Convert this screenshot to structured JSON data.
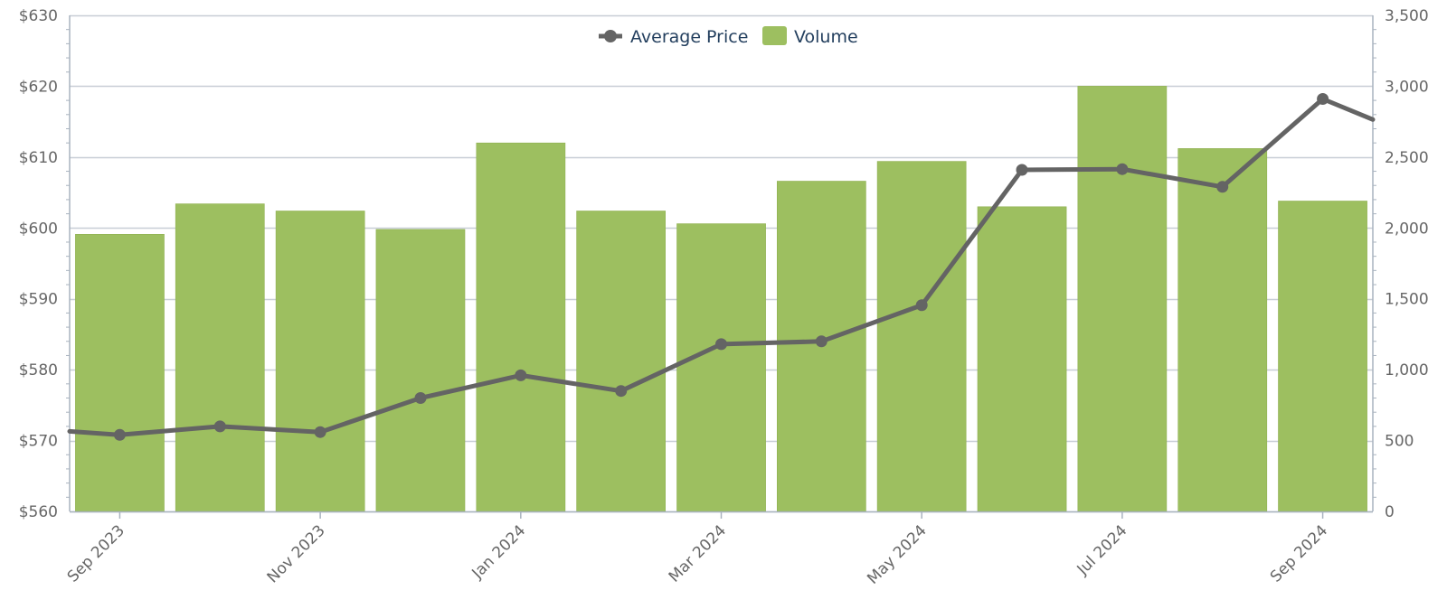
{
  "chart_data": {
    "type": "bar",
    "series": [
      {
        "name": "Volume",
        "type": "bar",
        "axis": "right",
        "color": "#9dbf60",
        "values": [
          1955,
          2170,
          2120,
          1990,
          2600,
          2120,
          2030,
          2330,
          2470,
          2150,
          3000,
          2560,
          2190
        ]
      },
      {
        "name": "Average Price",
        "type": "line",
        "axis": "left",
        "color": "#646464",
        "values": [
          570.8,
          572.0,
          571.2,
          576.0,
          579.2,
          577.0,
          583.6,
          584.0,
          589.1,
          608.2,
          608.3,
          605.8,
          618.2
        ]
      }
    ],
    "x": [
      "2023-09",
      "2023-10",
      "2023-11",
      "2023-12",
      "2024-01",
      "2024-02",
      "2024-03",
      "2024-04",
      "2024-05",
      "2024-06",
      "2024-07",
      "2024-08",
      "2024-09"
    ],
    "x_tick_labels": [
      {
        "at": "2023-09",
        "label": "Sep 2023"
      },
      {
        "at": "2023-11",
        "label": "Nov 2023"
      },
      {
        "at": "2024-01",
        "label": "Jan 2024"
      },
      {
        "at": "2024-03",
        "label": "Mar 2024"
      },
      {
        "at": "2024-05",
        "label": "May 2024"
      },
      {
        "at": "2024-07",
        "label": "Jul 2024"
      },
      {
        "at": "2024-09",
        "label": "Sep 2024"
      }
    ],
    "left_axis": {
      "ylim": [
        560,
        630
      ],
      "ticks": [
        560,
        570,
        580,
        590,
        600,
        610,
        620,
        630
      ],
      "tick_labels": [
        "$560",
        "$570",
        "$580",
        "$590",
        "$600",
        "$610",
        "$620",
        "$630"
      ]
    },
    "right_axis": {
      "ylim": [
        0,
        3500
      ],
      "ticks": [
        0,
        500,
        1000,
        1500,
        2000,
        2500,
        3000,
        3500
      ],
      "tick_labels": [
        "0",
        "500",
        "1,000",
        "1,500",
        "2,000",
        "2,500",
        "3,000",
        "3,500"
      ]
    },
    "line_edges": {
      "start": 571.3,
      "end": 615.3
    },
    "grid": true,
    "legend_position": "top-center",
    "legend": [
      "Average Price",
      "Volume"
    ],
    "title": "",
    "xlabel": "",
    "ylabel": ""
  }
}
